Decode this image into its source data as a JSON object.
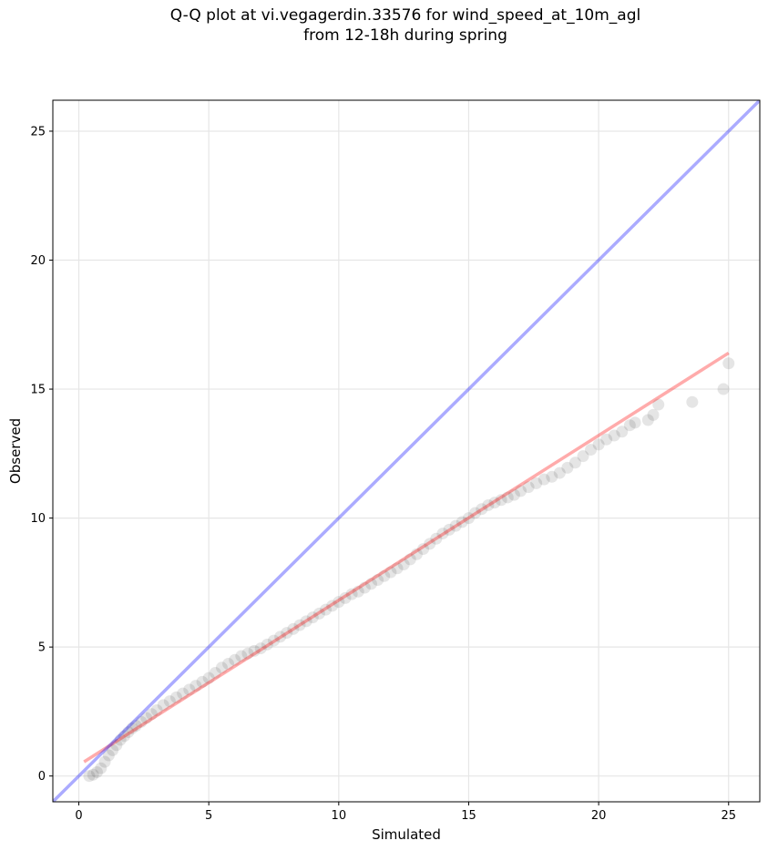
{
  "chart_data": {
    "type": "scatter",
    "title": "Q-Q plot at vi.vegagerdin.33576 for wind_speed_at_10m_agl\nfrom 12-18h during spring",
    "xlabel": "Simulated",
    "ylabel": "Observed",
    "xlim": [
      -1.0,
      26.2
    ],
    "ylim": [
      -1.0,
      26.2
    ],
    "xticks": [
      0,
      5,
      10,
      15,
      20,
      25
    ],
    "yticks": [
      0,
      5,
      10,
      15,
      20,
      25
    ],
    "grid": true,
    "series": [
      {
        "kind": "points",
        "color": "#000000",
        "points": [
          [
            0.4,
            0.0
          ],
          [
            0.55,
            0.05
          ],
          [
            0.7,
            0.15
          ],
          [
            0.85,
            0.3
          ],
          [
            1.0,
            0.55
          ],
          [
            1.15,
            0.8
          ],
          [
            1.3,
            1.0
          ],
          [
            1.45,
            1.2
          ],
          [
            1.6,
            1.4
          ],
          [
            1.75,
            1.55
          ],
          [
            1.9,
            1.7
          ],
          [
            2.05,
            1.85
          ],
          [
            2.2,
            1.95
          ],
          [
            2.4,
            2.1
          ],
          [
            2.6,
            2.25
          ],
          [
            2.8,
            2.4
          ],
          [
            3.0,
            2.55
          ],
          [
            3.25,
            2.75
          ],
          [
            3.5,
            2.9
          ],
          [
            3.75,
            3.05
          ],
          [
            4.0,
            3.2
          ],
          [
            4.25,
            3.35
          ],
          [
            4.5,
            3.5
          ],
          [
            4.75,
            3.65
          ],
          [
            5.0,
            3.8
          ],
          [
            5.25,
            4.0
          ],
          [
            5.5,
            4.2
          ],
          [
            5.75,
            4.35
          ],
          [
            6.0,
            4.5
          ],
          [
            6.25,
            4.65
          ],
          [
            6.5,
            4.75
          ],
          [
            6.75,
            4.85
          ],
          [
            7.0,
            4.95
          ],
          [
            7.25,
            5.1
          ],
          [
            7.5,
            5.25
          ],
          [
            7.75,
            5.4
          ],
          [
            8.0,
            5.55
          ],
          [
            8.25,
            5.7
          ],
          [
            8.5,
            5.85
          ],
          [
            8.75,
            6.0
          ],
          [
            9.0,
            6.15
          ],
          [
            9.25,
            6.3
          ],
          [
            9.5,
            6.45
          ],
          [
            9.75,
            6.6
          ],
          [
            10.0,
            6.75
          ],
          [
            10.25,
            6.9
          ],
          [
            10.5,
            7.05
          ],
          [
            10.75,
            7.15
          ],
          [
            11.0,
            7.3
          ],
          [
            11.25,
            7.45
          ],
          [
            11.5,
            7.6
          ],
          [
            11.75,
            7.75
          ],
          [
            12.0,
            7.9
          ],
          [
            12.25,
            8.05
          ],
          [
            12.5,
            8.2
          ],
          [
            12.75,
            8.4
          ],
          [
            13.0,
            8.6
          ],
          [
            13.25,
            8.8
          ],
          [
            13.5,
            9.0
          ],
          [
            13.75,
            9.2
          ],
          [
            14.0,
            9.4
          ],
          [
            14.25,
            9.55
          ],
          [
            14.5,
            9.7
          ],
          [
            14.75,
            9.85
          ],
          [
            15.0,
            10.0
          ],
          [
            15.25,
            10.2
          ],
          [
            15.5,
            10.35
          ],
          [
            15.75,
            10.5
          ],
          [
            16.0,
            10.6
          ],
          [
            16.25,
            10.7
          ],
          [
            16.5,
            10.8
          ],
          [
            16.75,
            10.9
          ],
          [
            17.0,
            11.05
          ],
          [
            17.3,
            11.2
          ],
          [
            17.6,
            11.35
          ],
          [
            17.9,
            11.5
          ],
          [
            18.2,
            11.6
          ],
          [
            18.5,
            11.75
          ],
          [
            18.8,
            11.95
          ],
          [
            19.1,
            12.15
          ],
          [
            19.4,
            12.4
          ],
          [
            19.7,
            12.65
          ],
          [
            20.0,
            12.85
          ],
          [
            20.3,
            13.05
          ],
          [
            20.6,
            13.2
          ],
          [
            20.9,
            13.35
          ],
          [
            21.2,
            13.6
          ],
          [
            21.4,
            13.7
          ],
          [
            21.9,
            13.8
          ],
          [
            22.1,
            14.0
          ],
          [
            22.3,
            14.4
          ],
          [
            23.6,
            14.5
          ],
          [
            24.8,
            15.0
          ],
          [
            25.0,
            16.0
          ]
        ]
      },
      {
        "kind": "line",
        "color": "#ff0000",
        "from": [
          0.2,
          0.55
        ],
        "to": [
          25.0,
          16.4
        ]
      },
      {
        "kind": "line",
        "color": "#0000ff",
        "from": [
          -1.0,
          -1.0
        ],
        "to": [
          26.2,
          26.2
        ]
      }
    ]
  }
}
